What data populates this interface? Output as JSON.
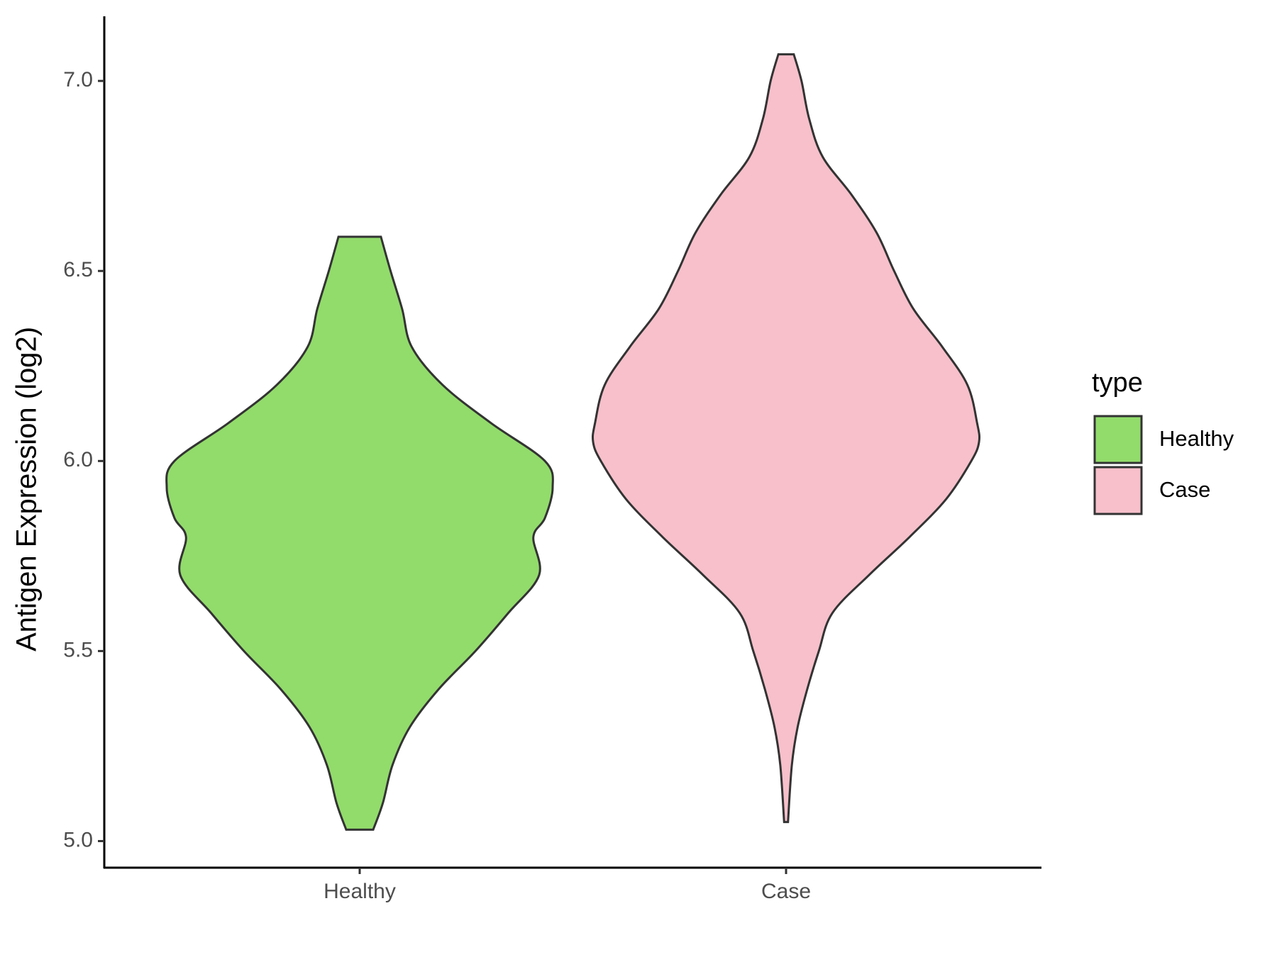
{
  "chart_data": {
    "type": "violin",
    "y_label": "Antigen Expression (log2)",
    "categories": [
      "Healthy",
      "Case"
    ],
    "legend_title": "type",
    "legend_position": "right",
    "ylim": [
      4.93,
      7.17
    ],
    "yticks": [
      {
        "value": 5,
        "label": "5.0"
      },
      {
        "value": 5.5,
        "label": "5.5"
      },
      {
        "value": 6,
        "label": "6.0"
      },
      {
        "value": 6.5,
        "label": "6.5"
      },
      {
        "value": 7,
        "label": "7.0"
      }
    ],
    "series": [
      {
        "name": "Healthy",
        "color": "#92dc6b",
        "y": [
          6.59,
          6.5,
          6.4,
          6.3,
          6.2,
          6.1,
          6.0,
          5.93,
          5.85,
          5.8,
          5.7,
          5.6,
          5.5,
          5.4,
          5.3,
          5.2,
          5.1,
          5.03
        ],
        "density": [
          0.11,
          0.16,
          0.22,
          0.27,
          0.43,
          0.68,
          0.96,
          1.0,
          0.96,
          0.9,
          0.93,
          0.77,
          0.6,
          0.41,
          0.26,
          0.17,
          0.12,
          0.07
        ]
      },
      {
        "name": "Case",
        "color": "#f7c0cb",
        "y": [
          7.07,
          7.0,
          6.9,
          6.8,
          6.7,
          6.6,
          6.5,
          6.4,
          6.3,
          6.2,
          6.1,
          6.05,
          6.0,
          5.9,
          5.8,
          5.7,
          5.6,
          5.5,
          5.4,
          5.3,
          5.2,
          5.05
        ],
        "density": [
          0.04,
          0.08,
          0.12,
          0.19,
          0.34,
          0.47,
          0.56,
          0.66,
          0.81,
          0.94,
          0.99,
          1.0,
          0.96,
          0.83,
          0.64,
          0.43,
          0.24,
          0.17,
          0.11,
          0.06,
          0.03,
          0.01
        ]
      }
    ]
  }
}
